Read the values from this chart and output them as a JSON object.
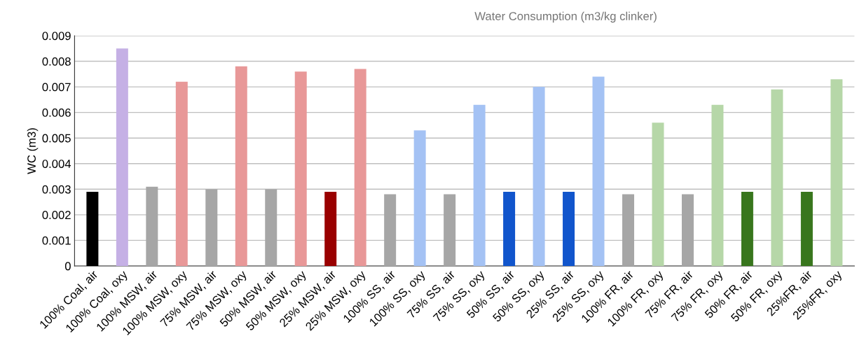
{
  "chart_data": {
    "type": "bar",
    "title": "Water Consumption (m3/kg clinker)",
    "ylabel": "WC (m3)",
    "categories": [
      "100% Coal, air",
      "100% Coal, oxy",
      "100% MSW, air",
      "100% MSW, oxy",
      "75% MSW, air",
      "75% MSW, oxy",
      "50% MSW, air",
      "50% MSW, oxy",
      "25% MSW, air",
      "25% MSW, oxy",
      "100% SS, air",
      "100% SS, oxy",
      "75% SS, air",
      "75% SS, oxy",
      "50% SS, air",
      "50% SS, oxy",
      "25% SS, air",
      "25% SS, oxy",
      "100% FR, air",
      "100% FR, oxy",
      "75% FR, air",
      "75% FR, oxy",
      "50% FR, air",
      "50% FR, oxy",
      "25%FR, air",
      "25%FR, oxy"
    ],
    "values": [
      0.0029,
      0.0085,
      0.0031,
      0.0072,
      0.003,
      0.0078,
      0.003,
      0.0076,
      0.0029,
      0.0077,
      0.0028,
      0.0053,
      0.0028,
      0.0063,
      0.0029,
      0.007,
      0.0029,
      0.0074,
      0.0028,
      0.0056,
      0.0028,
      0.0063,
      0.0029,
      0.0069,
      0.0029,
      0.0073
    ],
    "colors": [
      "#000000",
      "#c5b0e5",
      "#a6a6a6",
      "#e89898",
      "#a6a6a6",
      "#e89898",
      "#a6a6a6",
      "#e89898",
      "#990000",
      "#e89898",
      "#a6a6a6",
      "#a4c2f4",
      "#a6a6a6",
      "#a4c2f4",
      "#1155cc",
      "#a4c2f4",
      "#1155cc",
      "#a4c2f4",
      "#a6a6a6",
      "#b6d7a8",
      "#a6a6a6",
      "#b6d7a8",
      "#38761d",
      "#b6d7a8",
      "#38761d",
      "#b6d7a8"
    ],
    "ylim": [
      0,
      0.009
    ],
    "yticks": [
      {
        "value": 0,
        "label": "0"
      },
      0.001,
      0.002,
      0.003,
      0.004,
      0.005,
      0.006,
      0.007,
      0.008,
      0.009
    ],
    "grid": "y",
    "legend": false
  }
}
